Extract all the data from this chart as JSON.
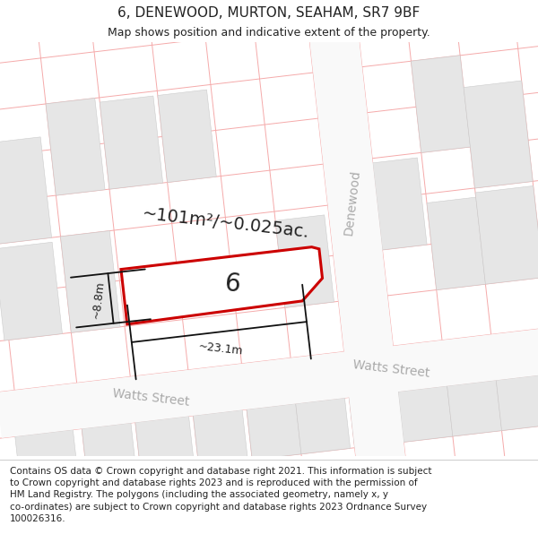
{
  "title": "6, DENEWOOD, MURTON, SEAHAM, SR7 9BF",
  "subtitle": "Map shows position and indicative extent of the property.",
  "footer": "Contains OS data © Crown copyright and database right 2021. This information is subject to Crown copyright and database rights 2023 and is reproduced with the permission of HM Land Registry. The polygons (including the associated geometry, namely x, y co-ordinates) are subject to Crown copyright and database rights 2023 Ordnance Survey 100026316.",
  "area_label": "~101m²/~0.025ac.",
  "property_number": "6",
  "width_label": "~23.1m",
  "height_label": "~8.8m",
  "street_label_left": "Watts Street",
  "street_label_right": "Watts Street",
  "denewood_label": "Denewood",
  "bg_color": "#ffffff",
  "map_bg": "#f7f7f7",
  "grid_color": "#f5aaaa",
  "block_color": "#e6e6e6",
  "block_edge": "#cccccc",
  "road_color": "#f9f9f9",
  "plot_edge_color": "#cc0000",
  "plot_fill_color": "#ffffff",
  "dim_color": "#111111",
  "street_color": "#aaaaaa",
  "text_color": "#222222",
  "title_fontsize": 11,
  "subtitle_fontsize": 9,
  "area_fontsize": 14,
  "num_fontsize": 20,
  "street_fontsize": 10,
  "dim_fontsize": 9,
  "footer_fontsize": 7.5,
  "denewood_fontsize": 10,
  "map_rotation_deg": 6.5
}
